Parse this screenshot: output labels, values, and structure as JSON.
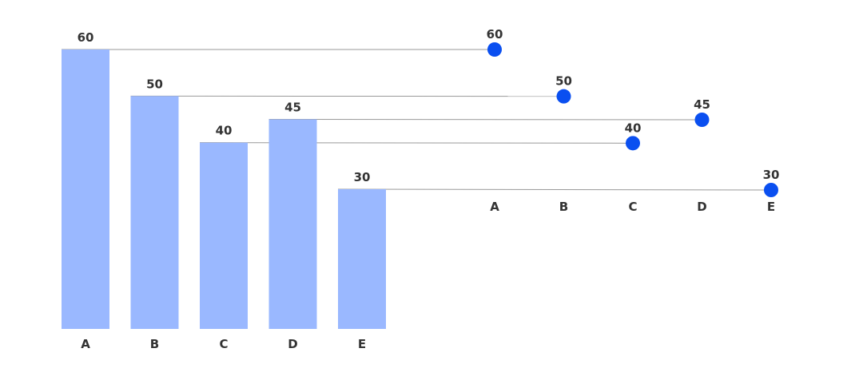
{
  "chart_data": [
    {
      "type": "bar",
      "categories": [
        "A",
        "B",
        "C",
        "D",
        "E"
      ],
      "values": [
        60,
        50,
        40,
        45,
        30
      ],
      "ylim": [
        0,
        60
      ],
      "grid": false,
      "legend": "none",
      "color": "#9ab8ff"
    },
    {
      "type": "scatter",
      "categories": [
        "A",
        "B",
        "C",
        "D",
        "E"
      ],
      "values": [
        60,
        50,
        40,
        45,
        30
      ],
      "ylim": [
        0,
        60
      ],
      "grid": false,
      "legend": "none",
      "color": "#0a4ff0"
    }
  ],
  "connector_color": "#999999"
}
